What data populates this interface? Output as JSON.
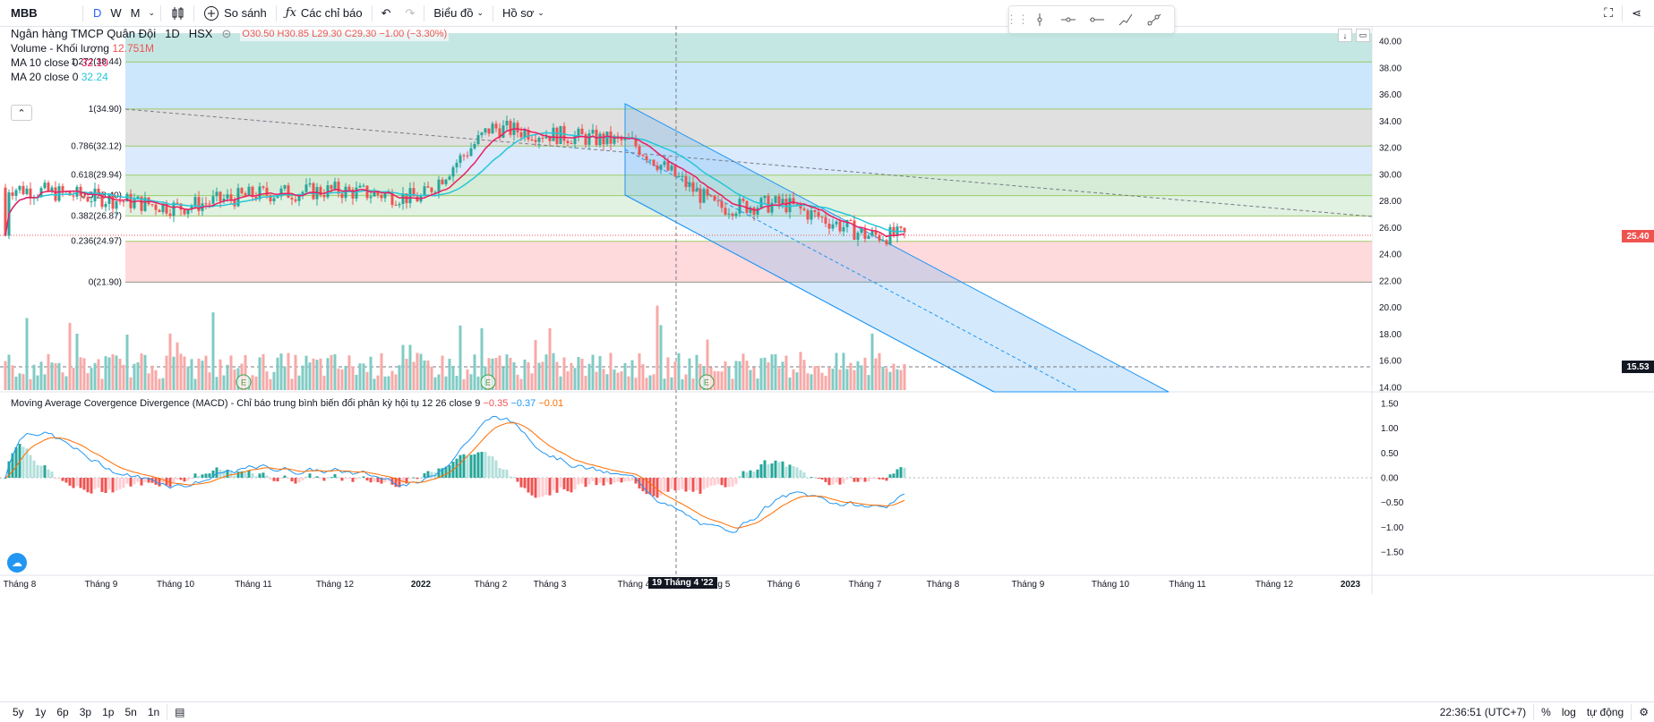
{
  "toolbar": {
    "symbol": "MBB",
    "intervals": [
      "D",
      "W",
      "M"
    ],
    "compare_label": "So sánh",
    "indicators_label": "Các chỉ báo",
    "chart_type_label": "Biểu đồ",
    "profile_label": "Hồ sơ"
  },
  "legend": {
    "name": "Ngân hàng TMCP Quân Đội",
    "interval": "1D",
    "exchange": "HSX",
    "o": "O30.50",
    "h": "H30.85",
    "l": "L29.30",
    "c": "C29.30",
    "change": "−1.00 (−3.30%)",
    "volume_label": "Volume - Khối lượng",
    "volume_value": "12.751M",
    "ma10_label": "MA 10 close 0",
    "ma10_value": "32.10",
    "ma20_label": "MA 20 close 0",
    "ma20_value": "32.24",
    "macd_label": "Moving Average Covergence Divergence (MACD) - Chỉ báo trung bình biến đổi phân kỳ hội tụ 12 26 close 9",
    "macd_v1": "−0.35",
    "macd_v2": "−0.37",
    "macd_v3": "−0.01"
  },
  "price_axis": [
    "40.00",
    "38.00",
    "36.00",
    "34.00",
    "32.00",
    "30.00",
    "28.00",
    "26.00",
    "24.00",
    "22.00",
    "20.00",
    "18.00",
    "16.00",
    "14.00"
  ],
  "macd_axis": [
    "1.50",
    "1.00",
    "0.50",
    "0.00",
    "−0.50",
    "−1.00",
    "−1.50"
  ],
  "price_tag": "25.40",
  "crosshair_tag": "15.53",
  "time_axis": [
    "Tháng 8",
    "Tháng 9",
    "Tháng 10",
    "Tháng 11",
    "Tháng 12",
    "2022",
    "Tháng 2",
    "Tháng 3",
    "Tháng 4",
    "Tháng 5",
    "Tháng 6",
    "Tháng 7",
    "Tháng 8",
    "Tháng 9",
    "Tháng 10",
    "Tháng 11",
    "Tháng 12",
    "2023"
  ],
  "crosshair_date": "19 Tháng 4 '22",
  "fib_levels": [
    {
      "label": "0(21.90)",
      "value": 21.9
    },
    {
      "label": "0.236(24.97)",
      "value": 24.97
    },
    {
      "label": "0.382(26.87)",
      "value": 26.87
    },
    {
      "label": "0.5(28.40)",
      "value": 28.4
    },
    {
      "label": "0.618(29.94)",
      "value": 29.94
    },
    {
      "label": "0.786(32.12)",
      "value": 32.12
    },
    {
      "label": "1(34.90)",
      "value": 34.9
    },
    {
      "label": "1.272(38.44)",
      "value": 38.44
    }
  ],
  "earnings_marker": "E",
  "bottom": {
    "ranges": [
      "5y",
      "1y",
      "6p",
      "3p",
      "1p",
      "5n",
      "1n"
    ],
    "clock": "22:36:51 (UTC+7)",
    "percent": "%",
    "log": "log",
    "auto": "tự động"
  },
  "colors": {
    "up": "#26a69a",
    "down": "#ef5350",
    "ma10": "#e91e63",
    "ma20": "#26c6da",
    "macd": "#2196f3",
    "signal": "#ff6d00",
    "accent": "#2962ff"
  },
  "chart_data": {
    "type": "candlestick",
    "x": [
      "Tháng 8",
      "Tháng 9",
      "Tháng 10",
      "Tháng 11",
      "Tháng 12",
      "2022",
      "Tháng 2",
      "Tháng 3",
      "Tháng 4",
      "Tháng 5",
      "Tháng 6",
      "Tháng 7"
    ],
    "approx_close": [
      29.0,
      28.2,
      27.5,
      28.5,
      28.8,
      28.2,
      33.5,
      33.0,
      32.4,
      27.5,
      27.8,
      25.4
    ],
    "ylim": [
      14,
      40
    ],
    "macd_ylim": [
      -1.7,
      1.5
    ],
    "last_price": 25.4
  }
}
